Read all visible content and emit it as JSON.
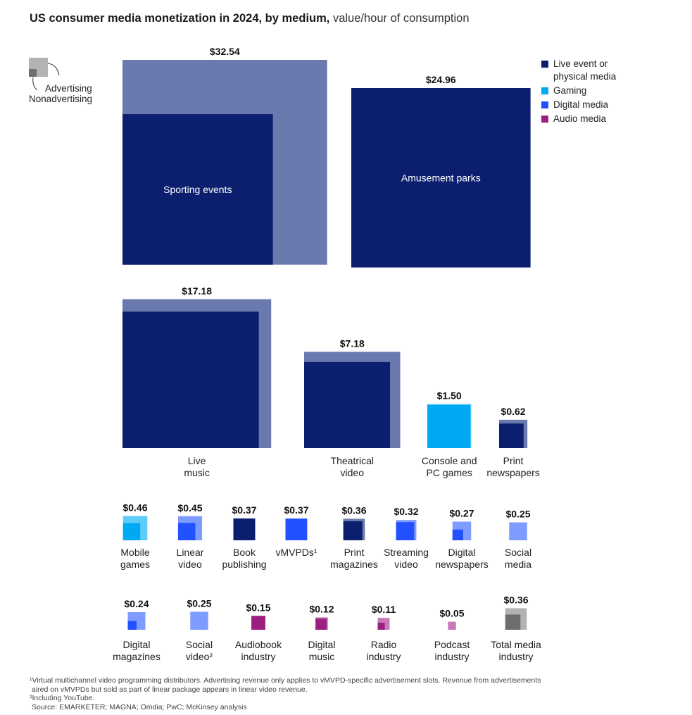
{
  "title": "US consumer media monetization in 2024, by medium,",
  "subtitle": "value/hour of consumption",
  "key": {
    "advertising": "Advertising",
    "nonadvertising": "Nonadvertising"
  },
  "legend": [
    {
      "label": "Live event or physical media",
      "color": "#0b1f6e"
    },
    {
      "label": "Gaming",
      "color": "#00a9f4"
    },
    {
      "label": "Digital media",
      "color": "#2251ff"
    },
    {
      "label": "Audio media",
      "color": "#9b1f7e"
    }
  ],
  "colors": {
    "live_event_nonadvertising": "#0b1f6e",
    "live_event_advertising": "#6b7aae",
    "gaming_nonadvertising": "#00a9f4",
    "gaming_advertising": "#5dccf8",
    "digital_nonadvertising": "#2251ff",
    "digital_advertising": "#7e9bff",
    "audio_nonadvertising": "#9b1f7e",
    "audio_advertising": "#c87ab8",
    "total_nonadvertising": "#6e6e6e",
    "total_advertising": "#b3b3b3"
  },
  "chart_data": {
    "type": "proportional area (square) chart",
    "unit": "value/hour of consumption",
    "items": [
      {
        "name": "Sporting events",
        "value_label": "$32.54",
        "value": 32.54,
        "category": "Live event or physical media",
        "nonadvertising_share": 0.54
      },
      {
        "name": "Amusement parks",
        "value_label": "$24.96",
        "value": 24.96,
        "category": "Live event or physical media",
        "nonadvertising_share": 1.0
      },
      {
        "name": "Live music",
        "value_label": "$17.18",
        "value": 17.18,
        "category": "Live event or physical media",
        "nonadvertising_share": 0.84
      },
      {
        "name": "Theatrical video",
        "value_label": "$7.18",
        "value": 7.18,
        "category": "Live event or physical media",
        "nonadvertising_share": 0.8
      },
      {
        "name": "Console and PC games",
        "value_label": "$1.50",
        "value": 1.5,
        "category": "Gaming",
        "nonadvertising_share": 0.96
      },
      {
        "name": "Print newspapers",
        "value_label": "$0.62",
        "value": 0.62,
        "category": "Live event or physical media",
        "nonadvertising_share": 0.75
      },
      {
        "name": "Mobile games",
        "value_label": "$0.46",
        "value": 0.46,
        "category": "Gaming",
        "nonadvertising_share": 0.5
      },
      {
        "name": "Linear video",
        "value_label": "$0.45",
        "value": 0.45,
        "category": "Digital media",
        "nonadvertising_share": 0.52
      },
      {
        "name": "Book publishing",
        "value_label": "$0.37",
        "value": 0.37,
        "category": "Live event or physical media",
        "nonadvertising_share": 1.0
      },
      {
        "name": "vMVPDs¹",
        "value_label": "$0.37",
        "value": 0.37,
        "category": "Digital media",
        "nonadvertising_share": 0.98
      },
      {
        "name": "Print magazines",
        "value_label": "$0.36",
        "value": 0.36,
        "category": "Live event or physical media",
        "nonadvertising_share": 0.78
      },
      {
        "name": "Streaming video",
        "value_label": "$0.32",
        "value": 0.32,
        "category": "Digital media",
        "nonadvertising_share": 0.8
      },
      {
        "name": "Digital newspapers",
        "value_label": "$0.27",
        "value": 0.27,
        "category": "Digital media",
        "nonadvertising_share": 0.33
      },
      {
        "name": "Social media",
        "value_label": "$0.25",
        "value": 0.25,
        "category": "Digital media",
        "nonadvertising_share": 0
      },
      {
        "name": "Digital magazines",
        "value_label": "$0.24",
        "value": 0.24,
        "category": "Digital media",
        "nonadvertising_share": 0.25
      },
      {
        "name": "Social video²",
        "value_label": "$0.25",
        "value": 0.25,
        "category": "Digital media",
        "nonadvertising_share": 0
      },
      {
        "name": "Audiobook industry",
        "value_label": "$0.15",
        "value": 0.15,
        "category": "Audio media",
        "nonadvertising_share": 1.0
      },
      {
        "name": "Digital music",
        "value_label": "$0.12",
        "value": 0.12,
        "category": "Audio media",
        "nonadvertising_share": 0.8
      },
      {
        "name": "Radio industry",
        "value_label": "$0.11",
        "value": 0.11,
        "category": "Audio media",
        "nonadvertising_share": 0.35
      },
      {
        "name": "Podcast industry",
        "value_label": "$0.05",
        "value": 0.05,
        "category": "Audio media",
        "nonadvertising_share": 0
      },
      {
        "name": "Total media industry",
        "value_label": "$0.36",
        "value": 0.36,
        "category": "Total",
        "nonadvertising_share": 0.5
      }
    ]
  },
  "footnotes": [
    "¹Virtual multichannel video programming distributors. Advertising revenue only applies to vMVPD-specific advertisement slots. Revenue from advertisements",
    "aired on vMVPDs but sold as part of linear package appears in linear video revenue.",
    "²Including YouTube.",
    "Source: EMARKETER; MAGNA; Omdia; PwC; McKinsey analysis"
  ]
}
